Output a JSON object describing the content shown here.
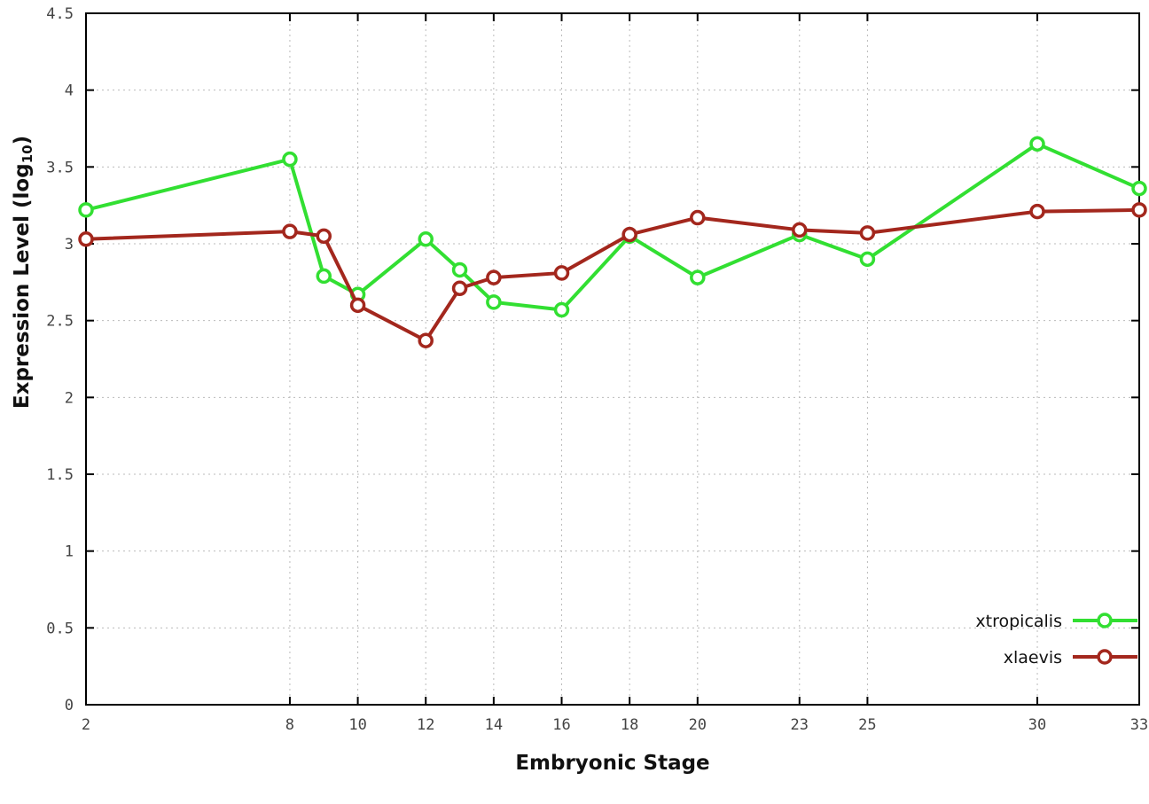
{
  "chart_data": {
    "type": "line",
    "title": "",
    "xlabel": "Embryonic Stage",
    "ylabel": "Expression Level (log10)",
    "ylabel_parts": {
      "main": "Expression Level (log",
      "sub": "10",
      "end": ")"
    },
    "x": [
      2,
      8,
      9,
      10,
      12,
      13,
      14,
      16,
      18,
      20,
      23,
      25,
      30,
      33
    ],
    "series": [
      {
        "name": "xtropicalis",
        "color": "#32df32",
        "marker": "circle-open",
        "values": [
          3.22,
          3.55,
          2.79,
          2.67,
          3.03,
          2.83,
          2.62,
          2.57,
          3.05,
          2.78,
          3.06,
          2.9,
          3.65,
          3.36
        ]
      },
      {
        "name": "xlaevis",
        "color": "#a3271d",
        "marker": "circle-open",
        "values": [
          3.03,
          3.08,
          3.05,
          2.6,
          2.37,
          2.71,
          2.78,
          2.81,
          3.06,
          3.17,
          3.09,
          3.07,
          3.21,
          3.22
        ]
      }
    ],
    "xlim": [
      2,
      33
    ],
    "ylim": [
      0,
      4.5
    ],
    "xticks": {
      "values": [
        2,
        8,
        10,
        12,
        14,
        16,
        18,
        20,
        23,
        25,
        30,
        33
      ],
      "labels": [
        "2",
        "8",
        "10",
        "12",
        "14",
        "16",
        "18",
        "20",
        "23",
        "25",
        "30",
        "33"
      ]
    },
    "yticks": {
      "values": [
        0,
        0.5,
        1,
        1.5,
        2,
        2.5,
        3,
        3.5,
        4,
        4.5
      ],
      "labels": [
        "0",
        "0.5",
        "1",
        "1.5",
        "2",
        "2.5",
        "3",
        "3.5",
        "4",
        "4.5"
      ]
    },
    "grid": true,
    "grid_style": "dotted",
    "border": true,
    "legend_position": "inside-bottom-right",
    "colors": {
      "grid": "#bbbbbb",
      "border": "#000000",
      "tick_text": "#444444",
      "legend_text": "#111111",
      "background": "#ffffff"
    }
  }
}
